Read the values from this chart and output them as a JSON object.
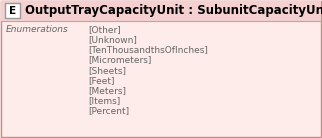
{
  "title": "OutputTrayCapacityUnit : SubunitCapacityUnitWKV",
  "icon_label": "E",
  "section_label": "Enumerations",
  "enumerations": [
    "[Other]",
    "[Unknown]",
    "[TenThousandthsOfInches]",
    "[Micrometers]",
    "[Sheets]",
    "[Feet]",
    "[Meters]",
    "[Items]",
    "[Percent]"
  ],
  "bg_color": "#FDECEA",
  "border_color": "#C8888A",
  "icon_bg": "#FFFFFF",
  "icon_border": "#999999",
  "title_color": "#000000",
  "section_color": "#666666",
  "enum_color": "#666666",
  "title_fontsize": 8.5,
  "section_fontsize": 6.5,
  "enum_fontsize": 6.5,
  "header_line_color": "#C8A0A0",
  "fig_width": 3.22,
  "fig_height": 1.38,
  "dpi": 100
}
